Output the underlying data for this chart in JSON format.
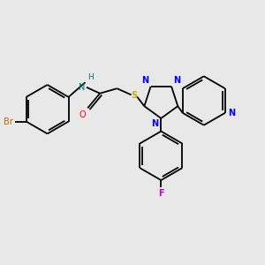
{
  "background_color": "#e8e8e8",
  "fig_size": [
    3.0,
    3.0
  ],
  "dpi": 100,
  "colors": {
    "bond": "black",
    "Br": "#cc6600",
    "O": "#ff0000",
    "NH": "#008080",
    "S": "#ccaa00",
    "N": "#0000ff",
    "F": "#cc00cc",
    "N_py": "#0000ff"
  },
  "lw": 1.3,
  "fs": 7.0
}
